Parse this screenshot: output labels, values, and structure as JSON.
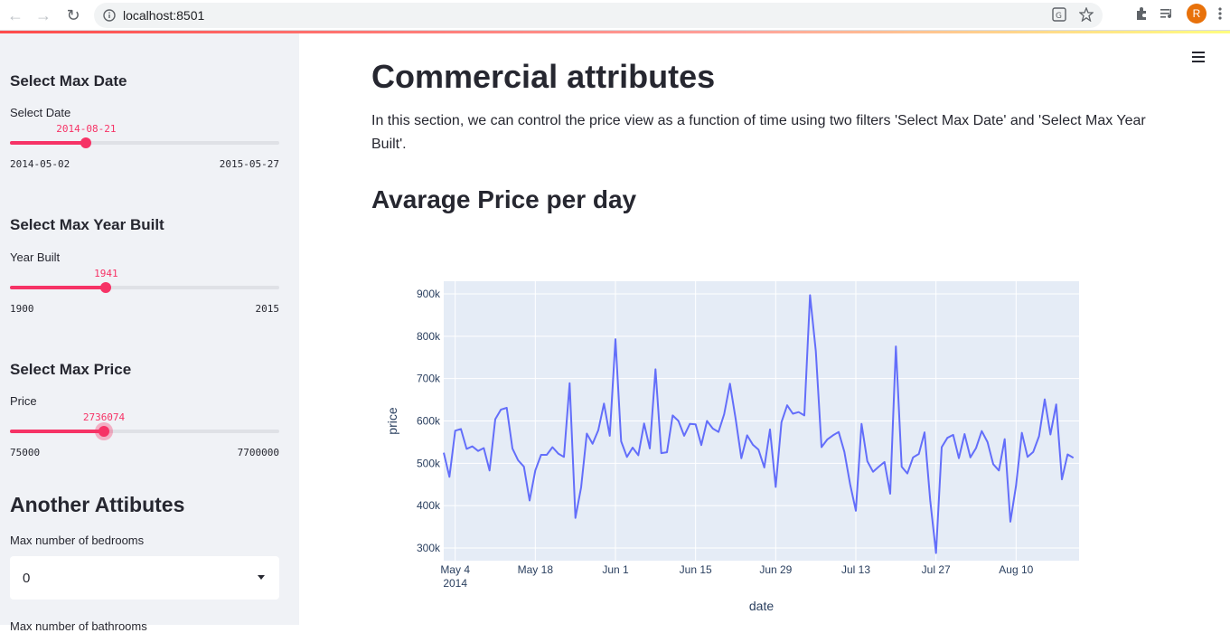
{
  "browser": {
    "url": "localhost:8501",
    "avatar_letter": "R"
  },
  "sidebar": {
    "date": {
      "heading": "Select Max Date",
      "label": "Select Date",
      "value": "2014-08-21",
      "min": "2014-05-02",
      "max": "2015-05-27",
      "fraction": 0.283
    },
    "year": {
      "heading": "Select Max Year Built",
      "label": "Year Built",
      "value": "1941",
      "min": "1900",
      "max": "2015",
      "fraction": 0.357
    },
    "price": {
      "heading": "Select Max Price",
      "label": "Price",
      "value": "2736074",
      "min": "75000",
      "max": "7700000",
      "fraction": 0.349
    },
    "another": {
      "heading": "Another Attibutes",
      "bedrooms_label": "Max number of bedrooms",
      "bedrooms_value": "0",
      "next_label": "Max number of bathrooms"
    }
  },
  "main": {
    "title": "Commercial attributes",
    "description": "In this section, we can control the price view as a function of time using two filters 'Select Max Date' and 'Select Max Year Built'.",
    "chart_heading": "Avarage Price per day"
  },
  "chart_data": {
    "type": "line",
    "xlabel": "date",
    "ylabel": "price",
    "x_start": "2014-05-02",
    "x_end": "2014-08-21",
    "x_ticks": [
      {
        "date": "2014-05-04",
        "label": "May 4",
        "sub": "2014"
      },
      {
        "date": "2014-05-18",
        "label": "May 18",
        "sub": ""
      },
      {
        "date": "2014-06-01",
        "label": "Jun 1",
        "sub": ""
      },
      {
        "date": "2014-06-15",
        "label": "Jun 15",
        "sub": ""
      },
      {
        "date": "2014-06-29",
        "label": "Jun 29",
        "sub": ""
      },
      {
        "date": "2014-07-13",
        "label": "Jul 13",
        "sub": ""
      },
      {
        "date": "2014-07-27",
        "label": "Jul 27",
        "sub": ""
      },
      {
        "date": "2014-08-10",
        "label": "Aug 10",
        "sub": ""
      }
    ],
    "y_ticks": [
      {
        "value": 300000,
        "label": "300k"
      },
      {
        "value": 400000,
        "label": "400k"
      },
      {
        "value": 500000,
        "label": "500k"
      },
      {
        "value": 600000,
        "label": "600k"
      },
      {
        "value": 700000,
        "label": "700k"
      },
      {
        "value": 800000,
        "label": "800k"
      },
      {
        "value": 900000,
        "label": "900k"
      }
    ],
    "ylim": [
      270000,
      930000
    ],
    "line_color": "#636efa",
    "series": [
      {
        "values": [
          525000,
          468000,
          577000,
          581000,
          534000,
          540000,
          529000,
          536000,
          483000,
          604000,
          627000,
          631000,
          535000,
          507000,
          492000,
          412000,
          483000,
          520000,
          520000,
          538000,
          523000,
          515000,
          689000,
          371000,
          443000,
          570000,
          546000,
          578000,
          641000,
          565000,
          793000,
          552000,
          515000,
          537000,
          519000,
          594000,
          535000,
          722000,
          524000,
          526000,
          613000,
          600000,
          565000,
          593000,
          592000,
          543000,
          600000,
          582000,
          574000,
          616000,
          688000,
          605000,
          512000,
          566000,
          544000,
          532000,
          490000,
          580000,
          444000,
          597000,
          637000,
          617000,
          621000,
          613000,
          897000,
          765000,
          538000,
          556000,
          566000,
          574000,
          527000,
          450000,
          388000,
          593000,
          505000,
          480000,
          492000,
          503000,
          428000,
          776000,
          492000,
          476000,
          514000,
          522000,
          573000,
          412000,
          288000,
          538000,
          560000,
          567000,
          512000,
          569000,
          514000,
          536000,
          576000,
          550000,
          498000,
          483000,
          557000,
          362000,
          448000,
          572000,
          515000,
          527000,
          564000,
          651000,
          568000,
          639000,
          462000,
          521000,
          513000
        ]
      }
    ]
  }
}
